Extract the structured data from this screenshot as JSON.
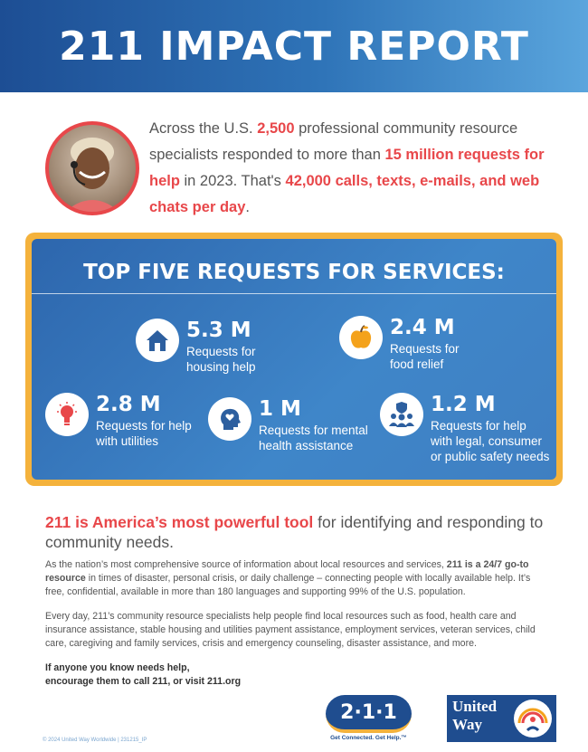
{
  "header": {
    "title": "211 IMPACT REPORT"
  },
  "intro": {
    "part1": "Across the U.S. ",
    "hl1": "2,500",
    "part2": " professional community resource specialists responded to more than ",
    "hl2": "15 million requests for help",
    "part3": " in 2023. That's ",
    "hl3": "42,000 calls, texts, e-mails, and web chats per day",
    "part4": "."
  },
  "services": {
    "title": "TOP FIVE REQUESTS FOR SERVICES:",
    "items": [
      {
        "value": "5.3 M",
        "label_line1": "Requests for",
        "label_line2": "housing help",
        "icon": "house-icon",
        "icon_color": "#2d5f9f"
      },
      {
        "value": "2.4 M",
        "label_line1": "Requests for",
        "label_line2": "food relief",
        "icon": "apple-icon",
        "icon_color": "#f4a21b"
      },
      {
        "value": "2.8 M",
        "label_line1": "Requests for help",
        "label_line2": "with utilities",
        "icon": "lightbulb-icon",
        "icon_color": "#e8474a"
      },
      {
        "value": "1 M",
        "label_line1": "Requests for mental",
        "label_line2": "health assistance",
        "icon": "head-heart-icon",
        "icon_color": "#2d5f9f"
      },
      {
        "value": "1.2 M",
        "label_line1": "Requests for help",
        "label_line2": "with legal, consumer",
        "label_line3": "or public safety needs",
        "icon": "people-shield-icon",
        "icon_color": "#2d5f9f"
      }
    ]
  },
  "tagline": {
    "hl": "211 is America’s most powerful tool",
    "rest": " for identifying and responding to community needs."
  },
  "body": {
    "p1_a": "As the nation’s most comprehensive source of information about local resources and services, ",
    "p1_b": "211 is a 24/7 go-to resource",
    "p1_c": " in times of disaster, personal crisis, or daily challenge – connecting people with locally available help. It’s free, confidential, available in more than 180 languages and supporting 99% of the U.S. population.",
    "p2": "Every day, 211’s community resource specialists help people find local resources such as food, health care and insurance assistance, stable housing and utilities payment assistance, employment services, veteran services, child care, caregiving and family services, crisis and emergency counseling, disaster assistance, and more.",
    "cta1": "If anyone you know needs help,",
    "cta2": "encourage them to call 211, or visit 211.org"
  },
  "footer": {
    "note": "© 2024 United Way Worldwide  |  231215_IP",
    "logo_211": "2·1·1",
    "logo_211_tag": "Get Connected. Get Help.™",
    "uw_line1": "United",
    "uw_line2": "Way"
  },
  "colors": {
    "accent_red": "#e8474a",
    "brand_blue": "#1f4d8f",
    "gold": "#f4b23c"
  }
}
